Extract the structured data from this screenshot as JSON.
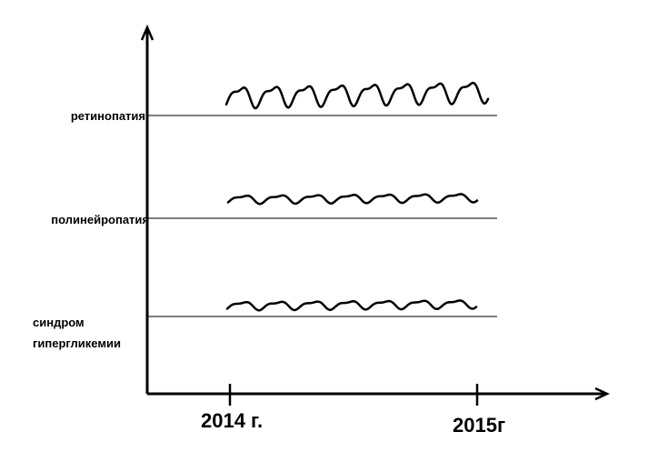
{
  "rows": [
    {
      "label": "ретинопатия"
    },
    {
      "label": "полинейропатия"
    },
    {
      "label_lines": [
        "синдром",
        "гипергликемии"
      ]
    }
  ],
  "x_axis": {
    "labels": [
      "2014 г.",
      "2015г"
    ]
  }
}
